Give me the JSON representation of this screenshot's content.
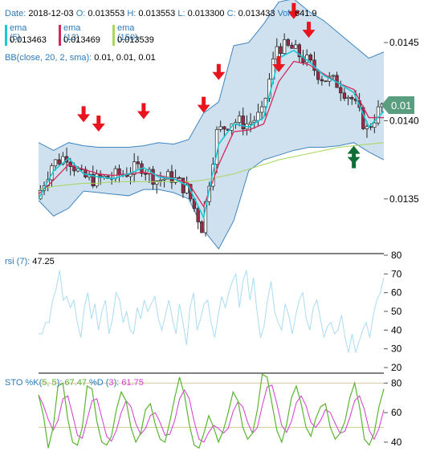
{
  "header": {
    "date_label": "Date:",
    "date": "2018-12-03",
    "open_label": "O:",
    "open": "0.013553",
    "high_label": "H:",
    "high": "0.013553",
    "low_label": "L:",
    "low": "0.013300",
    "close_label": "C:",
    "close": "0.013433",
    "volume_label": "Vol:",
    "volume": "641.9"
  },
  "ema_legend": [
    {
      "name": "ema (5)",
      "value": "0.013463",
      "color": "#18c8d4"
    },
    {
      "name": "ema (13)",
      "value": "0.013469",
      "color": "#d4285a"
    },
    {
      "name": "ema (150)",
      "value": "0.013539",
      "color": "#a6d65a"
    }
  ],
  "bb_legend": {
    "label": "BB(close, 20, 2, sma):",
    "values": "0.01, 0.01, 0.01"
  },
  "price_badge": {
    "value": "0.01",
    "color": "#5a9e80"
  },
  "rsi_legend": {
    "label": "rsi (7):",
    "value": "47.25"
  },
  "sto_legend": {
    "prefix": "STO %K(",
    "k_params": "5, 5",
    "sep1": "):",
    "k_value": "67.47",
    "d_prefix": "%D (",
    "d_params": "3",
    "sep2": "):",
    "d_value": "61.75"
  },
  "colors": {
    "bb_fill": "#cfe1ef",
    "bb_line": "#3f85bf",
    "ema5": "#18c8d4",
    "ema13": "#d4285a",
    "ema150": "#a6d65a",
    "candle_up": "#ffffff",
    "candle_down": "#9e2a4a",
    "sell_arrow": "#e8141e",
    "buy_arrow": "#0e6e35",
    "rsi": "#a9dcf1",
    "sto_k": "#5ab431",
    "sto_d": "#d23cd2"
  },
  "chart_data": [
    {
      "type": "candlestick",
      "title": "",
      "y_ticks": [
        "0.0145",
        "0.0140",
        "0.0135"
      ],
      "ylim": [
        0.01315,
        0.01468
      ],
      "bollinger_upper": [
        0.01386,
        0.01381,
        0.01386,
        0.01384,
        0.01383,
        0.01383,
        0.01383,
        0.01384,
        0.01386,
        0.01385,
        0.01388,
        0.01405,
        0.01412,
        0.01448,
        0.0145,
        0.01462,
        0.01476,
        0.01478,
        0.0147,
        0.01464,
        0.01456,
        0.01448,
        0.0144,
        0.01444
      ],
      "bollinger_lower": [
        0.01349,
        0.01339,
        0.01344,
        0.01355,
        0.01354,
        0.01353,
        0.01352,
        0.01356,
        0.01356,
        0.01354,
        0.0135,
        0.0133,
        0.01318,
        0.01336,
        0.01368,
        0.01375,
        0.01378,
        0.01381,
        0.01383,
        0.01383,
        0.01384,
        0.01386,
        0.0138,
        0.01375
      ],
      "ema150": [
        0.01356,
        0.01358,
        0.01359,
        0.0136,
        0.0136,
        0.01361,
        0.01361,
        0.01361,
        0.01361,
        0.01361,
        0.01361,
        0.01362,
        0.01364,
        0.01366,
        0.01369,
        0.01372,
        0.01375,
        0.01377,
        0.01379,
        0.01381,
        0.01383,
        0.01384,
        0.01385,
        0.01386
      ],
      "ema13": [
        0.01353,
        0.01362,
        0.01372,
        0.01369,
        0.01366,
        0.01365,
        0.01366,
        0.01367,
        0.01365,
        0.01363,
        0.0136,
        0.01345,
        0.01372,
        0.01393,
        0.01394,
        0.01398,
        0.01425,
        0.01438,
        0.01436,
        0.0143,
        0.01424,
        0.0142,
        0.01402,
        0.01402
      ],
      "ema5": [
        0.0135,
        0.01368,
        0.01376,
        0.01366,
        0.01364,
        0.01363,
        0.01366,
        0.0137,
        0.01364,
        0.01363,
        0.01358,
        0.01338,
        0.01385,
        0.01398,
        0.01396,
        0.01402,
        0.0144,
        0.01445,
        0.01438,
        0.01429,
        0.01424,
        0.01418,
        0.01396,
        0.01406
      ],
      "close": [
        0.0135,
        0.01372,
        0.01378,
        0.01364,
        0.01362,
        0.01364,
        0.01367,
        0.01371,
        0.01362,
        0.01364,
        0.01356,
        0.01332,
        0.01392,
        0.014,
        0.01398,
        0.01404,
        0.01448,
        0.01446,
        0.01438,
        0.01428,
        0.01424,
        0.01414,
        0.01394,
        0.0141
      ],
      "sell_signals": [
        {
          "index": 3,
          "price": 0.01398
        },
        {
          "index": 4,
          "price": 0.01392
        },
        {
          "index": 7,
          "price": 0.014
        },
        {
          "index": 11,
          "price": 0.01404
        },
        {
          "index": 12,
          "price": 0.01425
        },
        {
          "index": 16,
          "price": 0.0143
        },
        {
          "index": 17,
          "price": 0.01464
        },
        {
          "index": 18,
          "price": 0.01452
        }
      ],
      "buy_signals": [
        {
          "index": 21,
          "price": 0.01384
        }
      ]
    },
    {
      "type": "line",
      "title": "rsi (7)",
      "y_ticks": [
        "80",
        "70",
        "60",
        "50",
        "40",
        "30",
        "20"
      ],
      "ylim": [
        20,
        80
      ],
      "values": [
        38,
        38,
        44,
        44,
        56,
        62,
        72,
        56,
        58,
        52,
        56,
        44,
        36,
        52,
        60,
        46,
        54,
        40,
        50,
        56,
        38,
        46,
        60,
        56,
        44,
        50,
        40,
        38,
        52,
        46,
        56,
        50,
        54,
        58,
        46,
        40,
        48,
        56,
        46,
        38,
        54,
        44,
        32,
        52,
        60,
        40,
        46,
        54,
        56,
        44,
        36,
        48,
        58,
        52,
        60,
        66,
        70,
        52,
        66,
        72,
        56,
        68,
        50,
        36,
        42,
        56,
        66,
        50,
        44,
        40,
        54,
        48,
        38,
        48,
        56,
        60,
        46,
        40,
        52,
        56,
        46,
        36,
        42,
        44,
        38,
        40,
        48,
        36,
        28,
        38,
        28,
        34,
        40,
        44,
        36,
        48,
        56,
        60,
        68
      ]
    },
    {
      "type": "line",
      "title": "STO",
      "y_ticks": [
        "80",
        "60",
        "40"
      ],
      "ylim": [
        34,
        84
      ],
      "k": [
        72,
        58,
        36,
        50,
        78,
        80,
        56,
        40,
        38,
        50,
        78,
        76,
        54,
        40,
        38,
        44,
        62,
        74,
        68,
        50,
        40,
        46,
        62,
        66,
        52,
        42,
        40,
        54,
        70,
        84,
        72,
        52,
        38,
        36,
        46,
        58,
        50,
        40,
        48,
        60,
        74,
        68,
        50,
        42,
        46,
        62,
        86,
        84,
        66,
        48,
        40,
        52,
        70,
        78,
        66,
        50,
        44,
        56,
        64,
        66,
        50,
        42,
        46,
        54,
        70,
        80,
        64,
        42,
        38,
        46,
        64,
        76
      ]
    }
  ]
}
